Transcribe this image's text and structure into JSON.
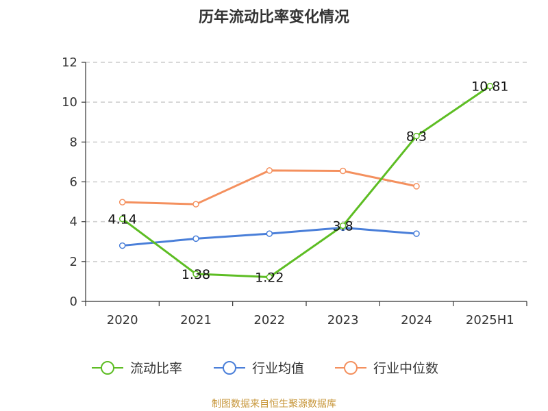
{
  "chart_data": {
    "type": "line",
    "title": "历年流动比率变化情况",
    "categories": [
      "2020",
      "2021",
      "2022",
      "2023",
      "2024",
      "2025H1"
    ],
    "ylim": [
      0,
      12
    ],
    "yticks": [
      0,
      2,
      4,
      6,
      8,
      10,
      12
    ],
    "grid": true,
    "legend_position": "bottom",
    "series": [
      {
        "name": "流动比率",
        "color": "#5dbd23",
        "values": [
          4.14,
          1.38,
          1.22,
          3.8,
          8.3,
          10.81
        ],
        "show_labels": true
      },
      {
        "name": "行业均值",
        "color": "#4a7fd9",
        "values": [
          2.8,
          3.15,
          3.4,
          3.7,
          3.4,
          null
        ],
        "show_labels": false
      },
      {
        "name": "行业中位数",
        "color": "#f4905e",
        "values": [
          4.98,
          4.88,
          6.57,
          6.55,
          5.78,
          null
        ],
        "show_labels": false
      }
    ],
    "data_labels": [
      "4.14",
      "1.38",
      "1.22",
      "3.8",
      "8.3",
      "10.81"
    ],
    "source": "制图数据来自恒生聚源数据库",
    "source_color": "#c7963a"
  }
}
